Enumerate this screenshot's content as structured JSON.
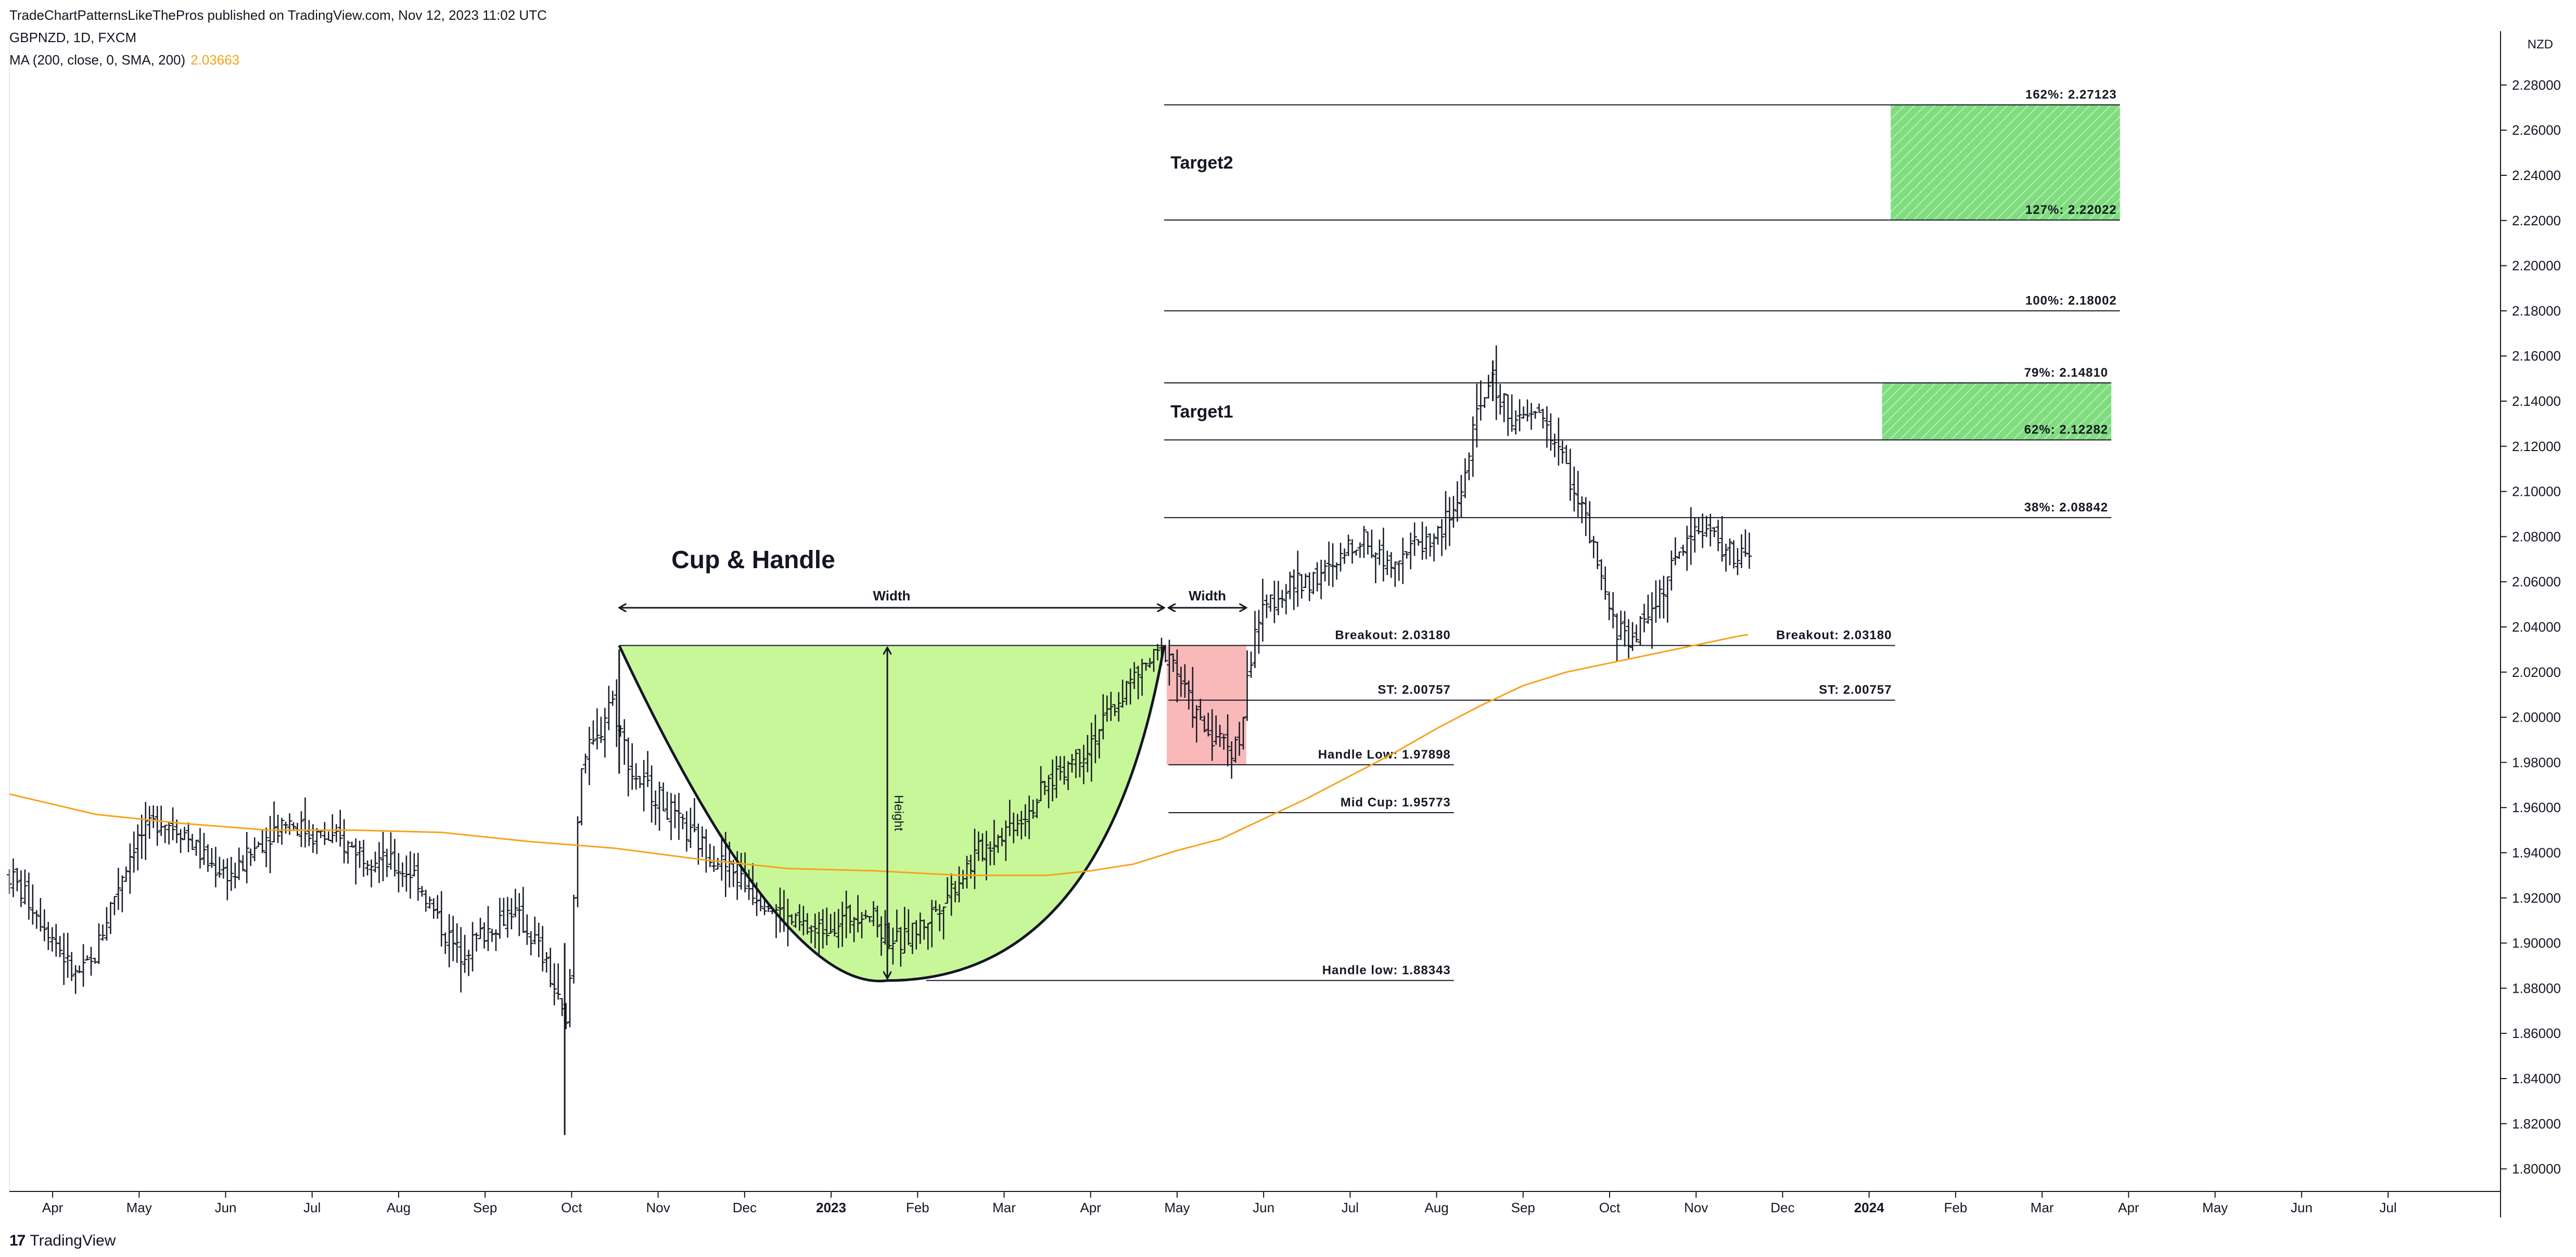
{
  "header": {
    "publish_line": "TradeChartPatternsLikeThePros published on TradingView.com, Nov 12, 2023 11:02 UTC",
    "symbol_line": "GBPNZD, 1D, FXCM",
    "ma_label": "MA (200, close, 0, SMA, 200)",
    "ma_value": "2.03663"
  },
  "footer": {
    "brand": "TradingView",
    "brand_mark": "17"
  },
  "colors": {
    "bars": "#131722",
    "ma": "#f7a21b",
    "cup_fill": "#c8f79a",
    "handle_fill": "#f9b9b9",
    "target_fill": "#7fdc7f",
    "target_hatch": "#b8efb8",
    "grid_line": "#131722"
  },
  "chart_data": {
    "type": "ohlc",
    "symbol": "GBPNZD",
    "currency": "NZD",
    "ylim": [
      1.79,
      2.29
    ],
    "y_ticks": [
      1.8,
      1.82,
      1.84,
      1.86,
      1.88,
      1.9,
      1.92,
      1.94,
      1.96,
      1.98,
      2.0,
      2.02,
      2.04,
      2.06,
      2.08,
      2.1,
      2.12,
      2.14,
      2.16,
      2.18,
      2.2,
      2.22,
      2.24,
      2.26,
      2.28
    ],
    "y_tick_labels": [
      "1.80000",
      "1.82000",
      "1.84000",
      "1.86000",
      "1.88000",
      "1.90000",
      "1.92000",
      "1.94000",
      "1.96000",
      "1.98000",
      "2.00000",
      "2.02000",
      "2.04000",
      "2.06000",
      "2.08000",
      "2.10000",
      "2.12000",
      "2.14000",
      "2.16000",
      "2.18000",
      "2.20000",
      "2.22000",
      "2.24000",
      "2.26000",
      "2.28000"
    ],
    "x_ticks": [
      {
        "t": 0.5,
        "label": "Apr"
      },
      {
        "t": 1.5,
        "label": "May"
      },
      {
        "t": 2.5,
        "label": "Jun"
      },
      {
        "t": 3.5,
        "label": "Jul"
      },
      {
        "t": 4.5,
        "label": "Aug"
      },
      {
        "t": 5.5,
        "label": "Sep"
      },
      {
        "t": 6.5,
        "label": "Oct"
      },
      {
        "t": 7.5,
        "label": "Nov"
      },
      {
        "t": 8.5,
        "label": "Dec"
      },
      {
        "t": 9.5,
        "label": "2023",
        "bold": true
      },
      {
        "t": 10.5,
        "label": "Feb"
      },
      {
        "t": 11.5,
        "label": "Mar"
      },
      {
        "t": 12.5,
        "label": "Apr"
      },
      {
        "t": 13.5,
        "label": "May"
      },
      {
        "t": 14.5,
        "label": "Jun"
      },
      {
        "t": 15.5,
        "label": "Jul"
      },
      {
        "t": 16.5,
        "label": "Aug"
      },
      {
        "t": 17.5,
        "label": "Sep"
      },
      {
        "t": 18.5,
        "label": "Oct"
      },
      {
        "t": 19.5,
        "label": "Nov"
      },
      {
        "t": 20.5,
        "label": "Dec"
      },
      {
        "t": 21.5,
        "label": "2024",
        "bold": true
      },
      {
        "t": 22.5,
        "label": "Feb"
      },
      {
        "t": 23.5,
        "label": "Mar"
      },
      {
        "t": 24.5,
        "label": "Apr"
      },
      {
        "t": 25.5,
        "label": "May"
      },
      {
        "t": 26.5,
        "label": "Jun"
      },
      {
        "t": 27.5,
        "label": "Jul"
      }
    ],
    "price_path": [
      [
        0.0,
        1.93
      ],
      [
        0.3,
        1.915
      ],
      [
        0.55,
        1.9
      ],
      [
        0.75,
        1.885
      ],
      [
        0.95,
        1.89
      ],
      [
        1.2,
        1.92
      ],
      [
        1.45,
        1.945
      ],
      [
        1.75,
        1.955
      ],
      [
        2.0,
        1.95
      ],
      [
        2.3,
        1.935
      ],
      [
        2.6,
        1.93
      ],
      [
        2.9,
        1.945
      ],
      [
        3.2,
        1.955
      ],
      [
        3.5,
        1.948
      ],
      [
        3.8,
        1.945
      ],
      [
        4.1,
        1.94
      ],
      [
        4.4,
        1.935
      ],
      [
        4.7,
        1.93
      ],
      [
        4.95,
        1.91
      ],
      [
        5.2,
        1.895
      ],
      [
        5.5,
        1.905
      ],
      [
        5.8,
        1.915
      ],
      [
        6.1,
        1.9
      ],
      [
        6.3,
        1.88
      ],
      [
        6.45,
        1.86
      ],
      [
        6.6,
        1.98
      ],
      [
        6.8,
        1.99
      ],
      [
        6.95,
        2.01
      ],
      [
        7.2,
        1.975
      ],
      [
        7.5,
        1.965
      ],
      [
        7.8,
        1.95
      ],
      [
        8.1,
        1.94
      ],
      [
        8.4,
        1.93
      ],
      [
        8.7,
        1.92
      ],
      [
        9.0,
        1.91
      ],
      [
        9.3,
        1.905
      ],
      [
        9.6,
        1.91
      ],
      [
        9.9,
        1.915
      ],
      [
        10.1,
        1.905
      ],
      [
        10.3,
        1.9
      ],
      [
        10.6,
        1.91
      ],
      [
        10.9,
        1.925
      ],
      [
        11.2,
        1.94
      ],
      [
        11.5,
        1.95
      ],
      [
        11.8,
        1.96
      ],
      [
        12.1,
        1.975
      ],
      [
        12.4,
        1.985
      ],
      [
        12.7,
        2.0
      ],
      [
        12.95,
        2.015
      ],
      [
        13.2,
        2.025
      ],
      [
        13.4,
        2.03
      ],
      [
        13.6,
        2.01
      ],
      [
        13.8,
        1.995
      ],
      [
        14.0,
        1.99
      ],
      [
        14.2,
        1.985
      ],
      [
        14.4,
        2.04
      ],
      [
        14.65,
        2.055
      ],
      [
        14.95,
        2.06
      ],
      [
        15.3,
        2.065
      ],
      [
        15.6,
        2.08
      ],
      [
        15.9,
        2.07
      ],
      [
        16.2,
        2.075
      ],
      [
        16.5,
        2.08
      ],
      [
        16.75,
        2.095
      ],
      [
        16.95,
        2.13
      ],
      [
        17.1,
        2.15
      ],
      [
        17.25,
        2.14
      ],
      [
        17.45,
        2.13
      ],
      [
        17.7,
        2.135
      ],
      [
        17.95,
        2.115
      ],
      [
        18.2,
        2.09
      ],
      [
        18.4,
        2.06
      ],
      [
        18.55,
        2.04
      ],
      [
        18.75,
        2.035
      ],
      [
        18.95,
        2.045
      ],
      [
        19.15,
        2.06
      ],
      [
        19.4,
        2.08
      ],
      [
        19.6,
        2.085
      ],
      [
        19.8,
        2.075
      ],
      [
        20.0,
        2.07
      ],
      [
        20.15,
        2.072
      ]
    ],
    "wicks": [
      {
        "t": 6.42,
        "low": 1.815,
        "high": 1.9
      },
      {
        "t": 7.05,
        "low": 1.975,
        "high": 2.03
      },
      {
        "t": 17.15,
        "low": 2.14,
        "high": 2.158
      }
    ],
    "ma_series": [
      [
        0.0,
        1.966
      ],
      [
        1.0,
        1.957
      ],
      [
        2.0,
        1.953
      ],
      [
        3.0,
        1.95
      ],
      [
        4.0,
        1.95
      ],
      [
        5.0,
        1.949
      ],
      [
        6.0,
        1.945
      ],
      [
        7.0,
        1.942
      ],
      [
        8.0,
        1.937
      ],
      [
        9.0,
        1.933
      ],
      [
        10.0,
        1.932
      ],
      [
        11.0,
        1.93
      ],
      [
        12.0,
        1.93
      ],
      [
        12.5,
        1.932
      ],
      [
        13.0,
        1.935
      ],
      [
        13.5,
        1.941
      ],
      [
        14.0,
        1.946
      ],
      [
        14.5,
        1.955
      ],
      [
        15.0,
        1.964
      ],
      [
        15.5,
        1.974
      ],
      [
        16.0,
        1.984
      ],
      [
        16.5,
        1.995
      ],
      [
        17.0,
        2.005
      ],
      [
        17.5,
        2.014
      ],
      [
        18.0,
        2.02
      ],
      [
        18.5,
        2.024
      ],
      [
        19.0,
        2.028
      ],
      [
        19.5,
        2.032
      ],
      [
        20.0,
        2.036
      ],
      [
        20.1,
        2.0366
      ]
    ],
    "ma_value": 2.03663,
    "cup": {
      "t_start": 7.05,
      "t_end": 13.35,
      "rim": 2.0318,
      "t_bottom": 10.15,
      "bottom": 1.8834
    },
    "handle_box": {
      "t_start": 13.38,
      "t_end": 14.3,
      "top": 2.0318,
      "bottom": 1.97898
    },
    "title": "Cup & Handle",
    "title_anchor": {
      "t": 8.6,
      "y": 2.066
    },
    "width_arrows": [
      {
        "t1": 7.05,
        "t2": 13.35,
        "y": 2.0485,
        "label": "Width"
      },
      {
        "t1": 13.4,
        "t2": 14.3,
        "y": 2.0485,
        "label": "Width"
      }
    ],
    "height_arrow": {
      "t": 10.15,
      "y1": 2.0318,
      "y2": 1.8834,
      "label": "Height"
    },
    "levels": [
      {
        "name": "breakout-left",
        "value": 2.0318,
        "t1": 13.4,
        "t2": 16.7,
        "label": "Breakout: 2.03180"
      },
      {
        "name": "breakout-right",
        "value": 2.0318,
        "t1": 16.7,
        "t2": 21.8,
        "label": "Breakout: 2.03180"
      },
      {
        "name": "st-left",
        "value": 2.00757,
        "t1": 13.4,
        "t2": 16.7,
        "label": "ST: 2.00757"
      },
      {
        "name": "st-right",
        "value": 2.00757,
        "t1": 16.7,
        "t2": 21.8,
        "label": "ST: 2.00757"
      },
      {
        "name": "handle-low-upper",
        "value": 1.97898,
        "t1": 13.4,
        "t2": 16.7,
        "label": "Handle Low: 1.97898"
      },
      {
        "name": "mid-cup",
        "value": 1.95773,
        "t1": 13.4,
        "t2": 16.7,
        "label": "Mid Cup: 1.95773"
      },
      {
        "name": "handle-low-lower",
        "value": 1.88343,
        "t1": 10.6,
        "t2": 16.7,
        "label": "Handle low: 1.88343"
      },
      {
        "name": "fib-38",
        "value": 2.08842,
        "t1": 13.35,
        "t2": 24.3,
        "label": "38%: 2.08842"
      },
      {
        "name": "fib-62",
        "value": 2.12282,
        "t1": 13.35,
        "t2": 24.3,
        "label": "62%: 2.12282"
      },
      {
        "name": "fib-79",
        "value": 2.1481,
        "t1": 13.35,
        "t2": 24.3,
        "label": "79%: 2.14810"
      },
      {
        "name": "fib-100",
        "value": 2.18002,
        "t1": 13.35,
        "t2": 24.4,
        "label": "100%: 2.18002"
      },
      {
        "name": "fib-127",
        "value": 2.22022,
        "t1": 13.35,
        "t2": 24.4,
        "label": "127%: 2.22022"
      },
      {
        "name": "fib-162",
        "value": 2.27123,
        "t1": 13.35,
        "t2": 24.4,
        "label": "162%: 2.27123"
      }
    ],
    "targets": [
      {
        "name": "target1",
        "label": "Target1",
        "low": 2.12282,
        "high": 2.1481,
        "t1": 21.65,
        "t2": 24.3,
        "label_t": 13.4
      },
      {
        "name": "target2",
        "label": "Target2",
        "low": 2.22022,
        "high": 2.27123,
        "t1": 21.75,
        "t2": 24.4,
        "label_t": 13.4
      }
    ]
  }
}
